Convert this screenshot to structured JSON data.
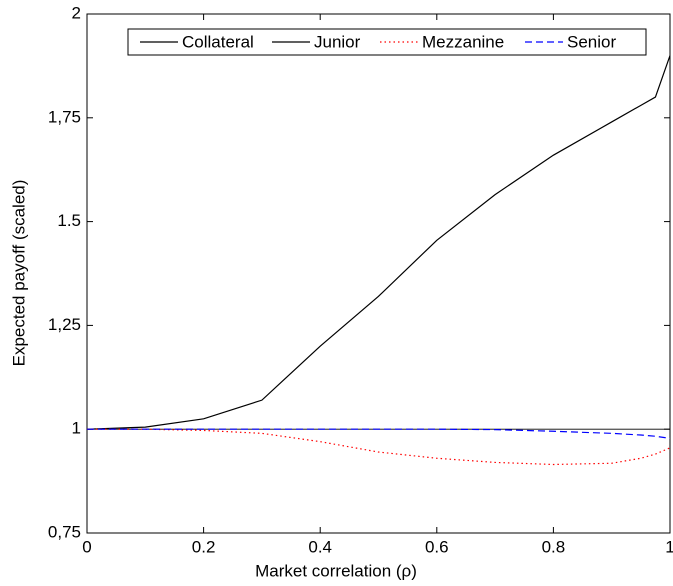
{
  "chart_data": {
    "type": "line",
    "xlabel": "Market correlation (ρ)",
    "ylabel": "Expected payoff (scaled)",
    "x": [
      0,
      0.1,
      0.2,
      0.3,
      0.4,
      0.5,
      0.6,
      0.7,
      0.8,
      0.9,
      0.95,
      0.975,
      1
    ],
    "series": [
      {
        "name": "Collateral",
        "color": "#000000",
        "style": "solid",
        "values": [
          1,
          1,
          1,
          1,
          1,
          1,
          1,
          1,
          1,
          1,
          1,
          1,
          1
        ]
      },
      {
        "name": "Junior",
        "color": "#000000",
        "style": "solid",
        "values": [
          1,
          1.005,
          1.025,
          1.07,
          1.2,
          1.32,
          1.455,
          1.565,
          1.66,
          1.74,
          1.78,
          1.8,
          1.9
        ]
      },
      {
        "name": "Mezzanine",
        "color": "#ff0000",
        "style": "dotted",
        "values": [
          1,
          1,
          0.997,
          0.99,
          0.97,
          0.945,
          0.93,
          0.92,
          0.915,
          0.918,
          0.93,
          0.94,
          0.955
        ]
      },
      {
        "name": "Senior",
        "color": "#0000ff",
        "style": "dashed",
        "values": [
          1,
          1,
          1,
          1,
          1,
          1,
          1,
          0.999,
          0.995,
          0.99,
          0.986,
          0.983,
          0.978
        ]
      }
    ],
    "xlim": [
      0,
      1
    ],
    "xticks": [
      0,
      0.2,
      0.4,
      0.6,
      0.8,
      1
    ],
    "ylim": [
      0.75,
      2
    ],
    "yticks": [
      {
        "value": 0.75,
        "label": "0,75"
      },
      1,
      {
        "value": 1.25,
        "label": "1,25"
      },
      1.5,
      {
        "value": 1.75,
        "label": "1,75"
      },
      2
    ],
    "legend": "top"
  }
}
